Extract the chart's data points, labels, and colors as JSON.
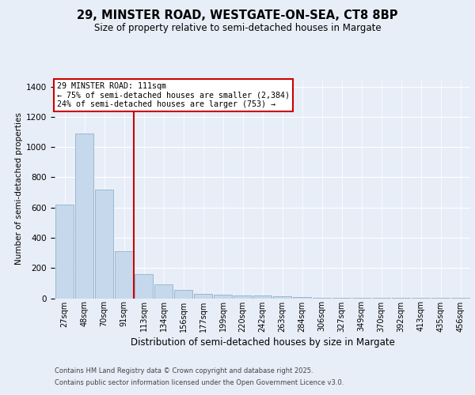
{
  "title_line1": "29, MINSTER ROAD, WESTGATE-ON-SEA, CT8 8BP",
  "title_line2": "Size of property relative to semi-detached houses in Margate",
  "xlabel": "Distribution of semi-detached houses by size in Margate",
  "ylabel": "Number of semi-detached properties",
  "categories": [
    "27sqm",
    "48sqm",
    "70sqm",
    "91sqm",
    "113sqm",
    "134sqm",
    "156sqm",
    "177sqm",
    "199sqm",
    "220sqm",
    "242sqm",
    "263sqm",
    "284sqm",
    "306sqm",
    "327sqm",
    "349sqm",
    "370sqm",
    "392sqm",
    "413sqm",
    "435sqm",
    "456sqm"
  ],
  "values": [
    620,
    1090,
    720,
    310,
    160,
    90,
    55,
    30,
    22,
    20,
    18,
    15,
    8,
    4,
    3,
    3,
    3,
    3,
    3,
    3,
    3
  ],
  "bar_color": "#c6d8eb",
  "bar_edge_color": "#9ab8d0",
  "vline_color": "#cc0000",
  "annotation_title": "29 MINSTER ROAD: 111sqm",
  "annotation_line1": "← 75% of semi-detached houses are smaller (2,384)",
  "annotation_line2": "24% of semi-detached houses are larger (753) →",
  "ylim_max": 1450,
  "yticks": [
    0,
    200,
    400,
    600,
    800,
    1000,
    1200,
    1400
  ],
  "footer_line1": "Contains HM Land Registry data © Crown copyright and database right 2025.",
  "footer_line2": "Contains public sector information licensed under the Open Government Licence v3.0.",
  "bg_color": "#e8eef8"
}
